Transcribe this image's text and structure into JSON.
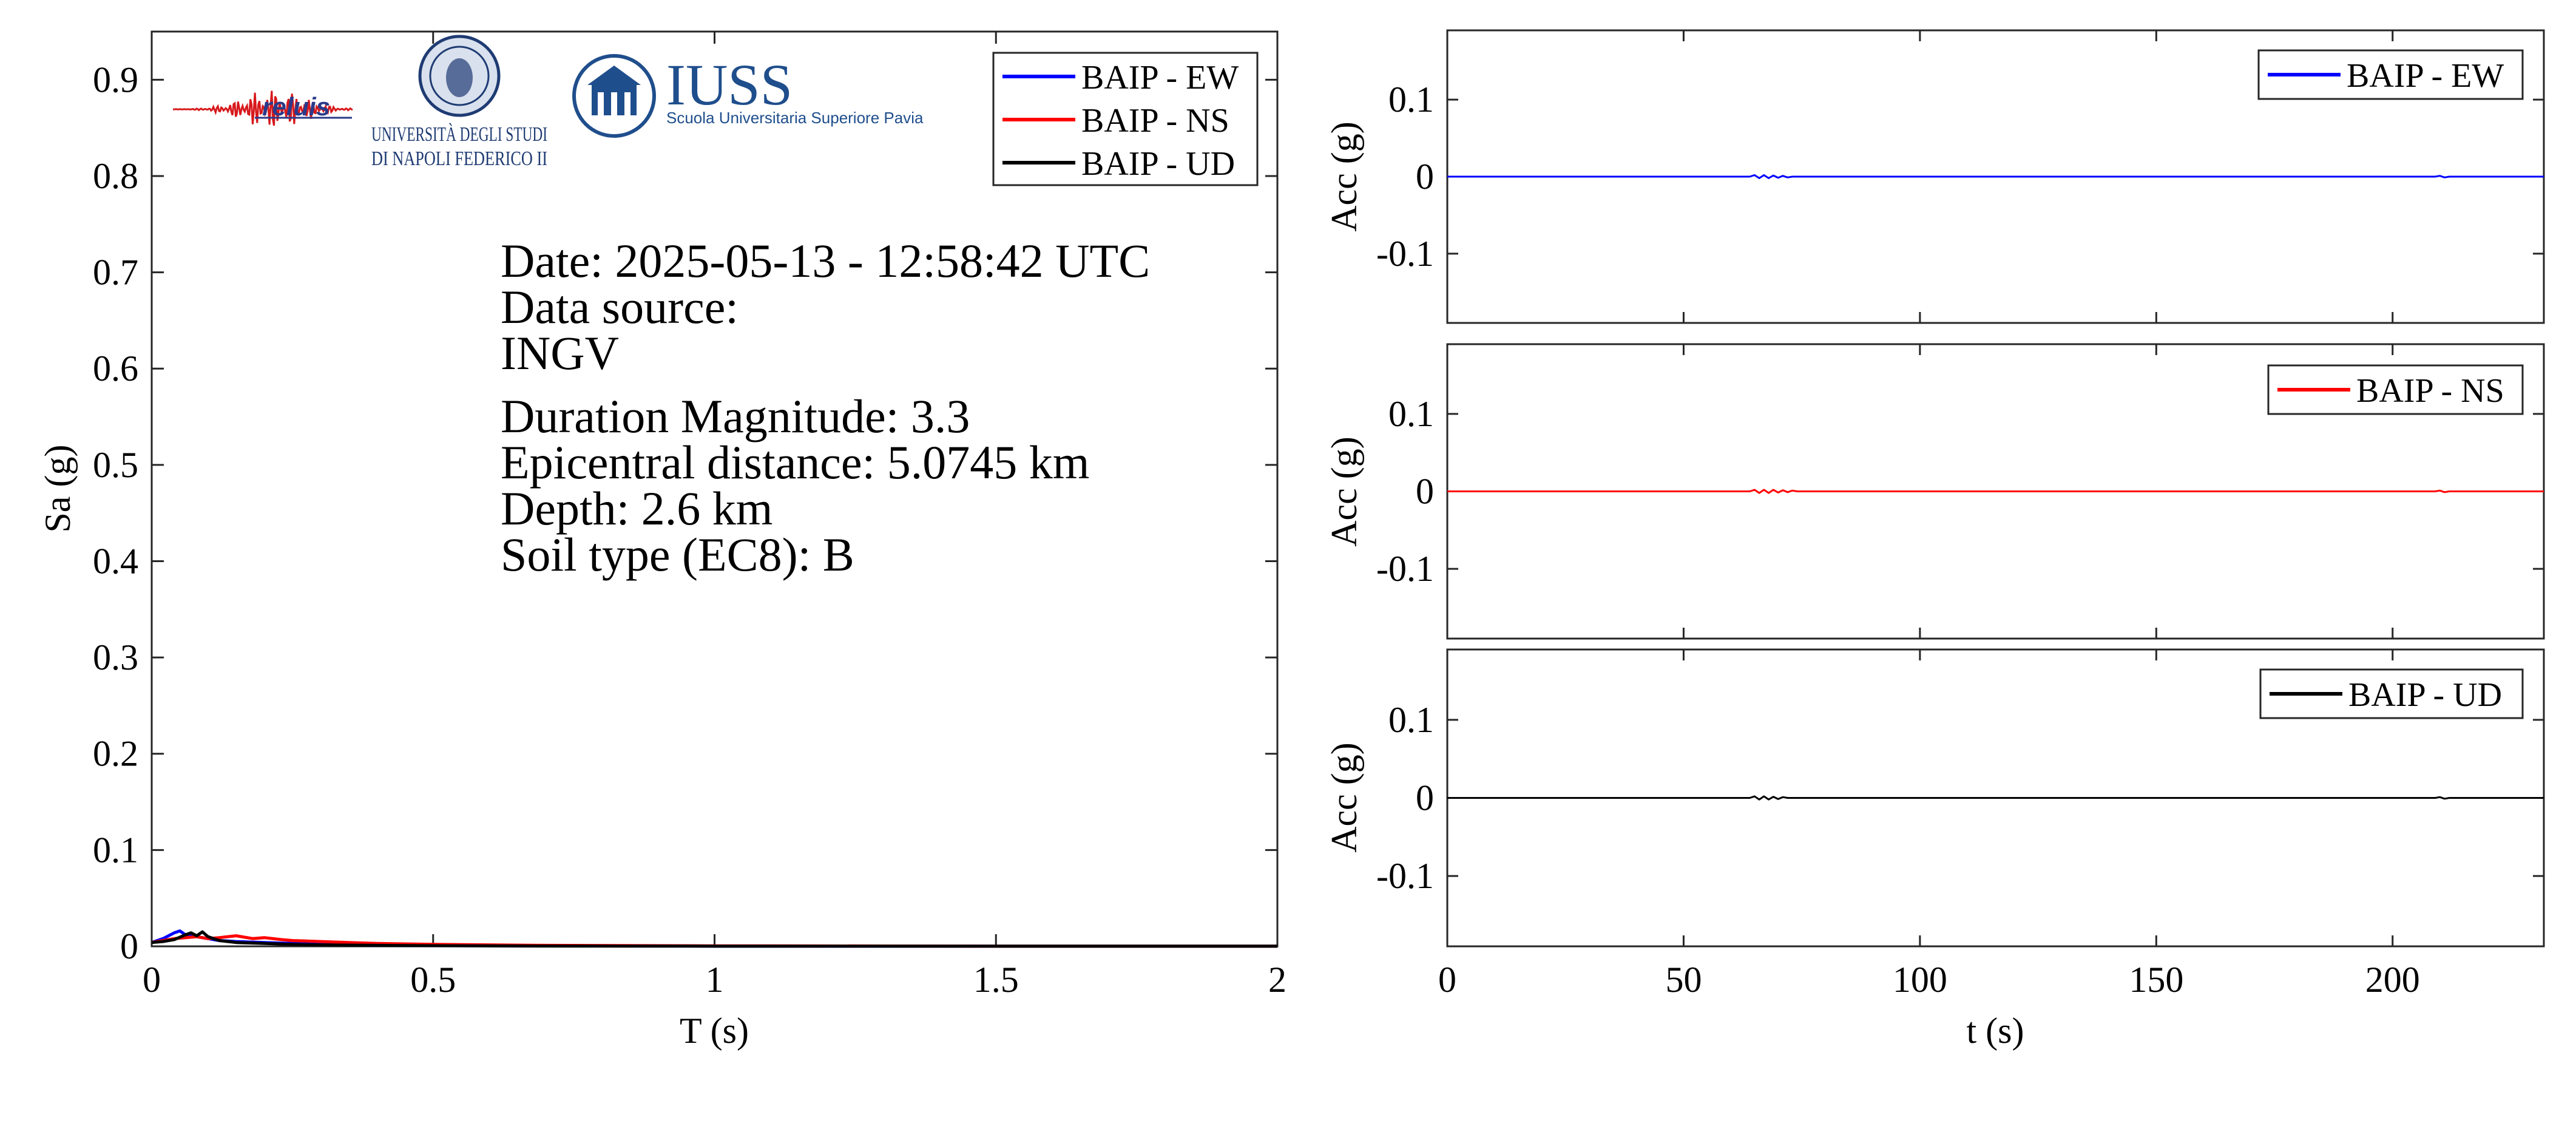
{
  "colors": {
    "ew": "#0000ff",
    "ns": "#ff0000",
    "ud": "#000000",
    "axis": "#262626"
  },
  "logos": {
    "reluis": "reluis",
    "unina_line1": "UNIVERSITÀ DEGLI STUDI",
    "unina_line2": "DI NAPOLI FEDERICO II",
    "iuss_name": "IUSS",
    "iuss_sub": "Scuola Universitaria Superiore Pavia"
  },
  "info": {
    "date": "Date: 2025-05-13 - 12:58:42 UTC",
    "source_label": "Data source:",
    "source": "INGV",
    "magnitude": "Duration Magnitude: 3.3",
    "distance": "Epicentral distance: 5.0745 km",
    "depth": "Depth: 2.6 km",
    "soil": "Soil type (EC8): B"
  },
  "chart_data": [
    {
      "type": "line",
      "xlabel": "T (s)",
      "ylabel": "Sa (g)",
      "xlim": [
        0,
        2
      ],
      "ylim": [
        0,
        0.95
      ],
      "xticks": [
        0,
        0.5,
        1,
        1.5,
        2
      ],
      "xtick_labels": [
        "0",
        "0.5",
        "1",
        "1.5",
        "2"
      ],
      "yticks": [
        0,
        0.1,
        0.2,
        0.3,
        0.4,
        0.5,
        0.6,
        0.7,
        0.8,
        0.9
      ],
      "ytick_labels": [
        "0",
        "0.1",
        "0.2",
        "0.3",
        "0.4",
        "0.5",
        "0.6",
        "0.7",
        "0.8",
        "0.9"
      ],
      "legend_position": "top-right",
      "series": [
        {
          "name": "BAIP - EW",
          "color": "#0000ff",
          "x": [
            0,
            0.02,
            0.04,
            0.05,
            0.06,
            0.08,
            0.1,
            0.12,
            0.15,
            0.2,
            0.25,
            0.3,
            0.4,
            0.5,
            0.7,
            1.0,
            1.5,
            2.0
          ],
          "y": [
            0.004,
            0.008,
            0.014,
            0.016,
            0.012,
            0.01,
            0.008,
            0.006,
            0.005,
            0.004,
            0.003,
            0.002,
            0.001,
            0.0008,
            0.0004,
            0.0002,
            0.0001,
            0.0001
          ]
        },
        {
          "name": "BAIP - NS",
          "color": "#ff0000",
          "x": [
            0,
            0.02,
            0.04,
            0.06,
            0.08,
            0.1,
            0.12,
            0.15,
            0.18,
            0.2,
            0.23,
            0.25,
            0.3,
            0.35,
            0.4,
            0.5,
            0.7,
            1.0,
            1.5,
            2.0
          ],
          "y": [
            0.004,
            0.006,
            0.008,
            0.009,
            0.01,
            0.008,
            0.009,
            0.011,
            0.008,
            0.009,
            0.007,
            0.006,
            0.005,
            0.004,
            0.003,
            0.002,
            0.001,
            0.0005,
            0.0002,
            0.0001
          ]
        },
        {
          "name": "BAIP - UD",
          "color": "#000000",
          "x": [
            0,
            0.02,
            0.04,
            0.06,
            0.07,
            0.08,
            0.09,
            0.1,
            0.12,
            0.15,
            0.2,
            0.25,
            0.3,
            0.4,
            0.5,
            0.7,
            1.0,
            1.5,
            2.0
          ],
          "y": [
            0.004,
            0.005,
            0.007,
            0.012,
            0.014,
            0.011,
            0.015,
            0.01,
            0.006,
            0.004,
            0.003,
            0.002,
            0.0015,
            0.001,
            0.0006,
            0.0003,
            0.0002,
            0.0001,
            0.0001
          ]
        }
      ]
    },
    {
      "type": "line",
      "ylabel": "Acc (g)",
      "xlim": [
        0,
        232
      ],
      "ylim": [
        -0.19,
        0.19
      ],
      "yticks": [
        0.1,
        0,
        -0.1
      ],
      "ytick_labels": [
        "0.1",
        "0",
        "-0.1"
      ],
      "xticks": [
        0,
        50,
        100,
        150,
        200
      ],
      "legend_position": "top-right",
      "series": [
        {
          "name": "BAIP - EW",
          "color": "#0000ff",
          "x": [
            0,
            64,
            65,
            66,
            67,
            68,
            69,
            70,
            71,
            72,
            73,
            209,
            210,
            211,
            212,
            232
          ],
          "y": [
            0,
            0,
            0.002,
            -0.002,
            0.002,
            -0.002,
            0.0015,
            -0.0015,
            0.001,
            -0.001,
            0,
            0,
            0.001,
            -0.001,
            0,
            0
          ]
        }
      ]
    },
    {
      "type": "line",
      "ylabel": "Acc (g)",
      "xlim": [
        0,
        232
      ],
      "ylim": [
        -0.19,
        0.19
      ],
      "yticks": [
        0.1,
        0,
        -0.1
      ],
      "ytick_labels": [
        "0.1",
        "0",
        "-0.1"
      ],
      "xticks": [
        0,
        50,
        100,
        150,
        200
      ],
      "legend_position": "top-right",
      "series": [
        {
          "name": "BAIP - NS",
          "color": "#ff0000",
          "x": [
            0,
            64,
            65,
            66,
            67,
            68,
            69,
            70,
            71,
            72,
            73,
            74,
            209,
            210,
            211,
            212,
            232
          ],
          "y": [
            0,
            0,
            0.002,
            -0.002,
            0.002,
            -0.002,
            0.002,
            -0.0015,
            0.0015,
            -0.001,
            0.001,
            0,
            0,
            0.001,
            -0.001,
            0,
            0
          ]
        }
      ]
    },
    {
      "type": "line",
      "xlabel": "t (s)",
      "ylabel": "Acc (g)",
      "xlim": [
        0,
        232
      ],
      "ylim": [
        -0.19,
        0.19
      ],
      "yticks": [
        0.1,
        0,
        -0.1
      ],
      "ytick_labels": [
        "0.1",
        "0",
        "-0.1"
      ],
      "xticks": [
        0,
        50,
        100,
        150,
        200
      ],
      "xtick_labels": [
        "0",
        "50",
        "100",
        "150",
        "200"
      ],
      "legend_position": "top-right",
      "series": [
        {
          "name": "BAIP - UD",
          "color": "#000000",
          "x": [
            0,
            64,
            65,
            66,
            67,
            68,
            69,
            70,
            71,
            72,
            209,
            210,
            211,
            212,
            232
          ],
          "y": [
            0,
            0,
            0.002,
            -0.002,
            0.002,
            -0.002,
            0.0015,
            -0.0015,
            0.001,
            0,
            0,
            0.001,
            -0.001,
            0,
            0
          ]
        }
      ]
    }
  ]
}
